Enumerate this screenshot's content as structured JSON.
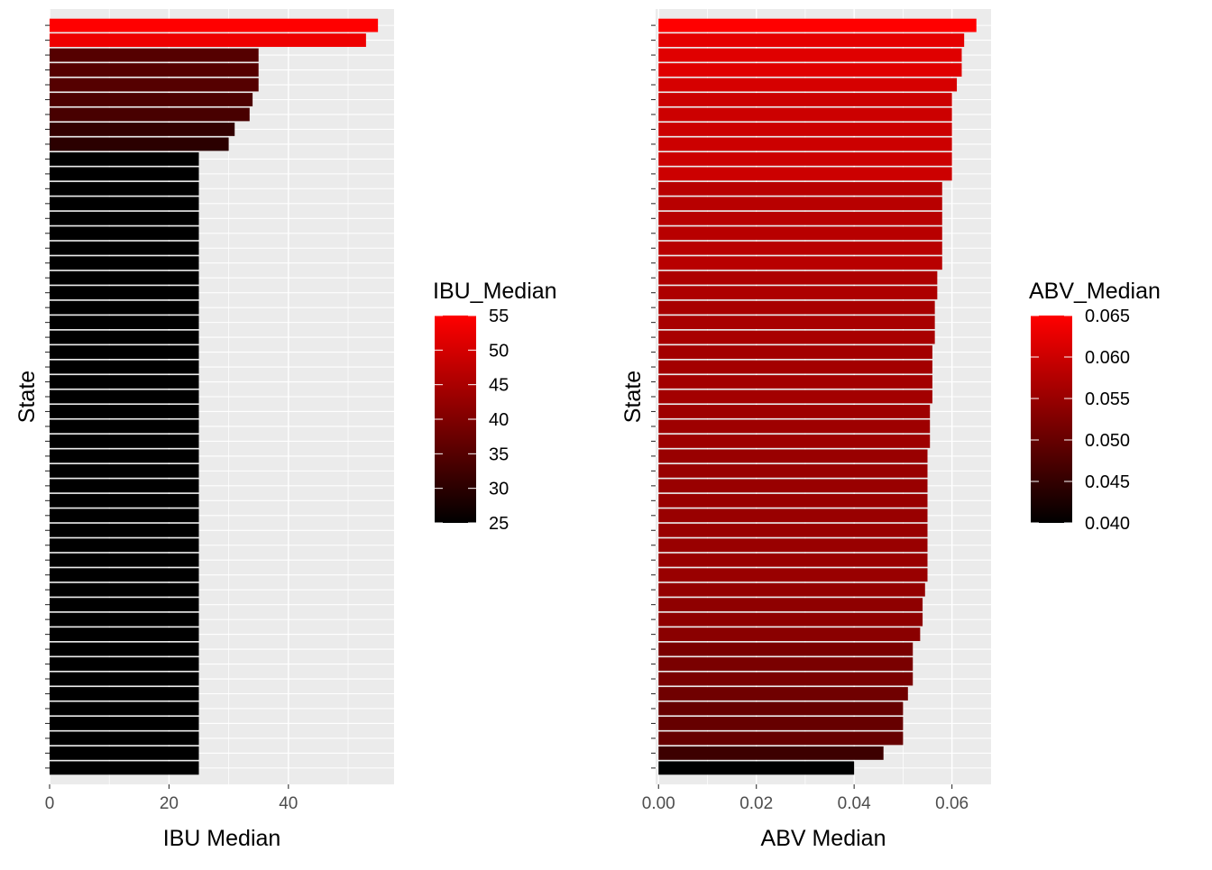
{
  "chart_data": [
    {
      "type": "bar",
      "orientation": "horizontal",
      "sorted": "descending",
      "xlabel": "IBU Median",
      "ylabel": "State",
      "xlim": [
        0,
        57.7
      ],
      "xticks": [
        0,
        20,
        40
      ],
      "xtick_labels": [
        "0",
        "20",
        "40"
      ],
      "y_tick_labels_shown": false,
      "grid": true,
      "legend": {
        "title": "IBU_Median",
        "placement": "right",
        "range": [
          25,
          55
        ],
        "ticks": [
          "55",
          "50",
          "45",
          "40",
          "35",
          "30",
          "25"
        ],
        "low_color": "#000000",
        "high_color": "#ff0000"
      },
      "values": [
        55,
        53,
        35,
        35,
        35,
        34,
        33.5,
        31,
        30,
        25,
        25,
        25,
        25,
        25,
        25,
        25,
        25,
        25,
        25,
        25,
        25,
        25,
        25,
        25,
        25,
        25,
        25,
        25,
        25,
        25,
        25,
        25,
        25,
        25,
        25,
        25,
        25,
        25,
        25,
        25,
        25,
        25,
        25,
        25,
        25,
        25,
        25,
        25,
        25,
        25,
        25
      ]
    },
    {
      "type": "bar",
      "orientation": "horizontal",
      "sorted": "descending",
      "xlabel": "ABV Median",
      "ylabel": "State",
      "xlim": [
        -0.0006,
        0.068
      ],
      "xticks": [
        0,
        0.02,
        0.04,
        0.06
      ],
      "xtick_labels": [
        "0.00",
        "0.02",
        "0.04",
        "0.06"
      ],
      "y_tick_labels_shown": false,
      "grid": true,
      "legend": {
        "title": "ABV_Median",
        "placement": "right",
        "range": [
          0.04,
          0.065
        ],
        "ticks": [
          "0.065",
          "0.060",
          "0.055",
          "0.050",
          "0.045",
          "0.040"
        ],
        "low_color": "#000000",
        "high_color": "#ff0000"
      },
      "values": [
        0.065,
        0.0625,
        0.062,
        0.062,
        0.061,
        0.06,
        0.06,
        0.06,
        0.06,
        0.06,
        0.06,
        0.058,
        0.058,
        0.058,
        0.058,
        0.058,
        0.058,
        0.057,
        0.057,
        0.0565,
        0.0565,
        0.0565,
        0.056,
        0.056,
        0.056,
        0.056,
        0.0555,
        0.0555,
        0.0555,
        0.055,
        0.055,
        0.055,
        0.055,
        0.055,
        0.055,
        0.055,
        0.055,
        0.055,
        0.0545,
        0.054,
        0.054,
        0.0535,
        0.052,
        0.052,
        0.052,
        0.051,
        0.05,
        0.05,
        0.05,
        0.046,
        0.04
      ]
    }
  ],
  "colors": {
    "panel_background": "#ebebeb",
    "grid_line": "#ffffff",
    "tick_color": "#333333",
    "tick_label": "#4d4d4d",
    "axis_title": "#000000"
  }
}
